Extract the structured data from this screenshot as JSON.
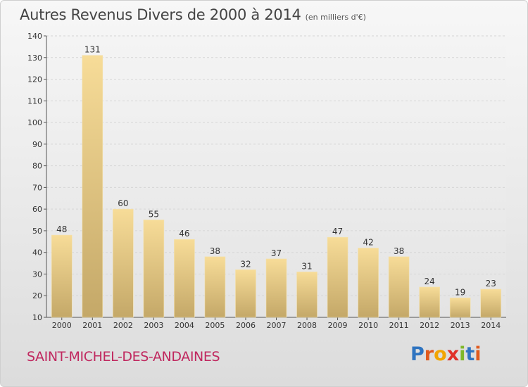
{
  "header": {
    "title": "Autres Revenus Divers de 2000 à 2014",
    "subtitle": "(en milliers d'€)"
  },
  "footer": {
    "commune": "SAINT-MICHEL-DES-ANDAINES",
    "logo_text": "Proxiti"
  },
  "colors": {
    "bar_light": "#f7dc98",
    "bar_dark": "#c4a868",
    "commune_text": "#c0285f",
    "logo_letters": [
      "#2f74c0",
      "#e05a1e",
      "#f2a500",
      "#e0302a",
      "#7fb728",
      "#2f74c0",
      "#e05a1e"
    ]
  },
  "chart_data": {
    "type": "bar",
    "categories": [
      "2000",
      "2001",
      "2002",
      "2003",
      "2004",
      "2005",
      "2006",
      "2007",
      "2008",
      "2009",
      "2010",
      "2011",
      "2012",
      "2013",
      "2014"
    ],
    "values": [
      48,
      131,
      60,
      55,
      46,
      38,
      32,
      37,
      31,
      47,
      42,
      38,
      24,
      19,
      23
    ],
    "ylim": [
      10,
      140
    ],
    "yticks": [
      10,
      20,
      30,
      40,
      50,
      60,
      70,
      80,
      90,
      100,
      110,
      120,
      130,
      140
    ],
    "grid": true,
    "data_labels": true
  }
}
